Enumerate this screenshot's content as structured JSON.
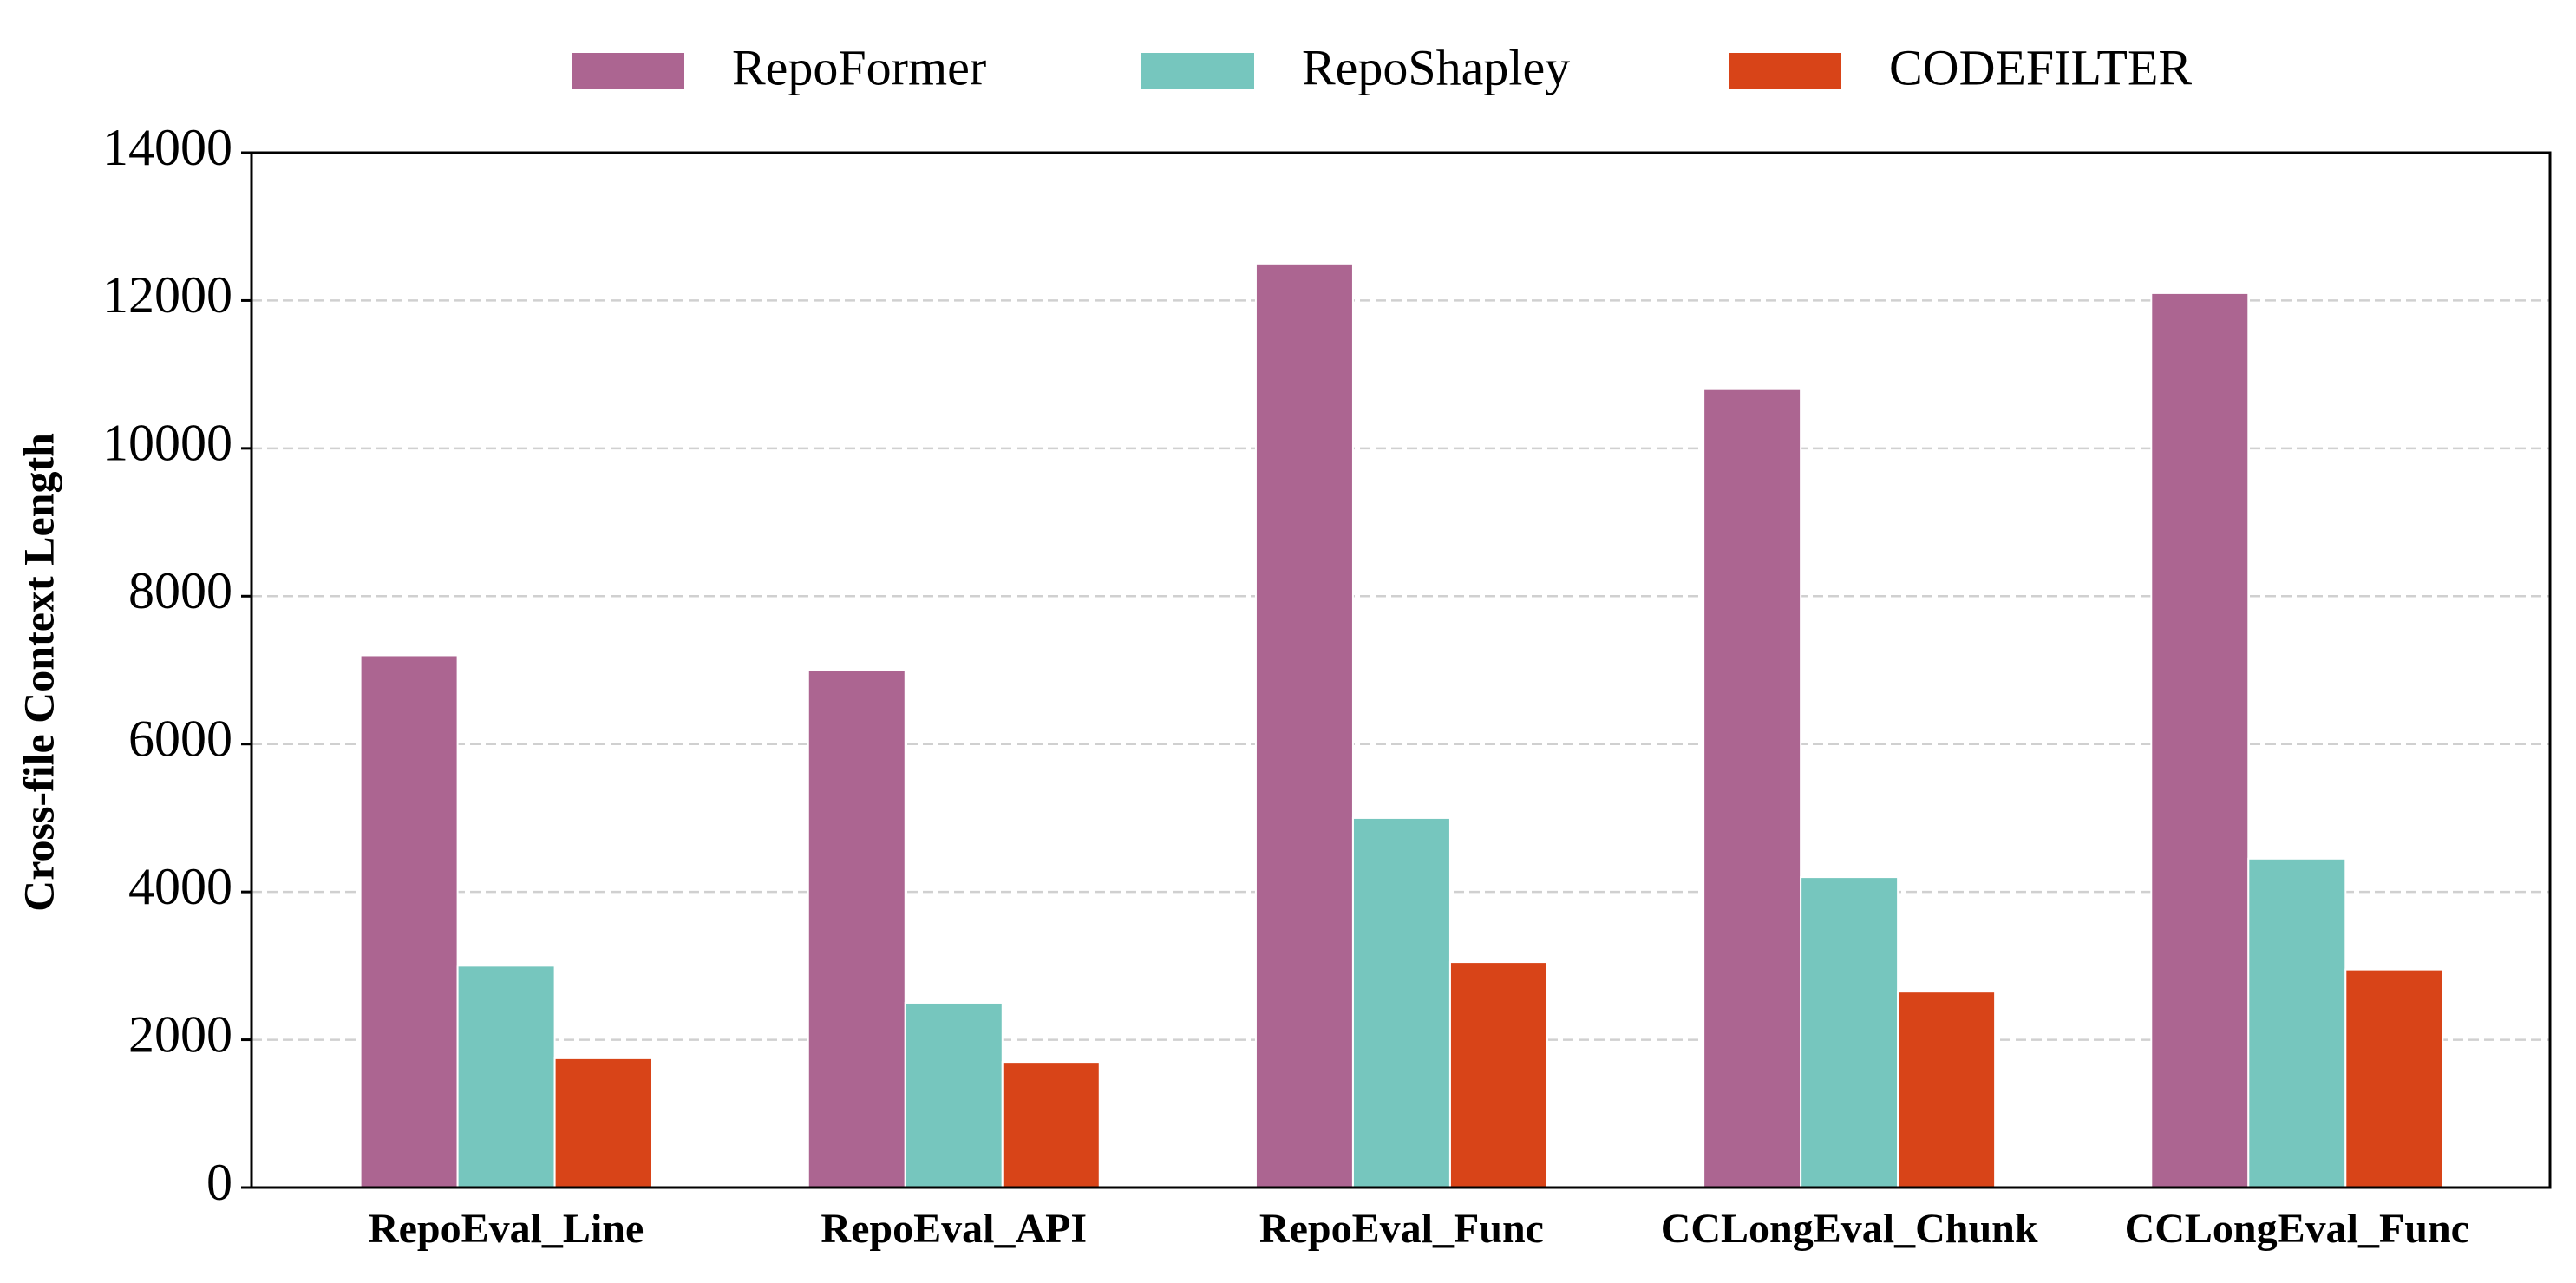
{
  "chart_data": {
    "type": "bar",
    "ylabel": "Cross-file Context Length",
    "categories": [
      "RepoEval_Line",
      "RepoEval_API",
      "RepoEval_Func",
      "CCLongEval_Chunk",
      "CCLongEval_Func"
    ],
    "series": [
      {
        "name": "RepoFormer",
        "color": "#ac6591",
        "values": [
          7200,
          7000,
          12500,
          10800,
          12100
        ]
      },
      {
        "name": "RepoShapley",
        "color": "#76c6be",
        "values": [
          3000,
          2500,
          5000,
          4200,
          4450
        ]
      },
      {
        "name": "CODEFILTER",
        "color": "#d84418",
        "values": [
          1750,
          1700,
          3050,
          2650,
          2950
        ]
      }
    ],
    "ylim": [
      0,
      14000
    ],
    "yticks": [
      0,
      2000,
      4000,
      6000,
      8000,
      10000,
      12000,
      14000
    ],
    "grid": true,
    "legend": "top"
  }
}
